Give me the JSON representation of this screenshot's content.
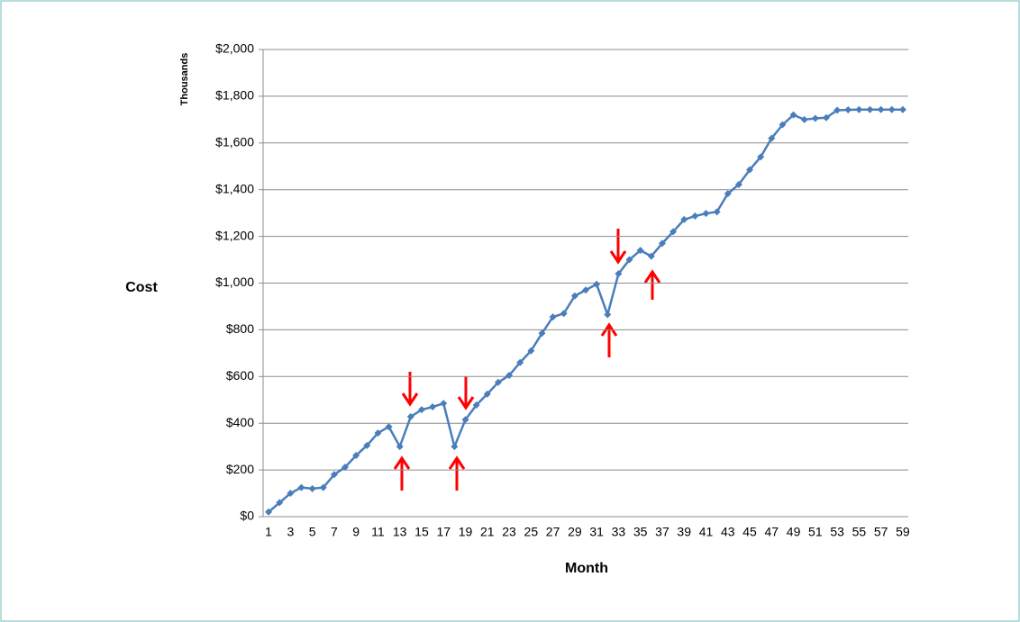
{
  "chart_data": {
    "type": "line",
    "ylabel": "Cost",
    "yunit": "Thousands",
    "xlabel": "Month",
    "categories": [
      1,
      null,
      3,
      null,
      5,
      null,
      7,
      null,
      9,
      null,
      11,
      null,
      13,
      null,
      15,
      null,
      17,
      null,
      19,
      null,
      21,
      null,
      23,
      null,
      25,
      null,
      27,
      null,
      29,
      null,
      31,
      null,
      33,
      null,
      35,
      null,
      37,
      null,
      39,
      null,
      41,
      null,
      43,
      null,
      45,
      null,
      47,
      null,
      49,
      null,
      51,
      null,
      53,
      null,
      55,
      null,
      57,
      null,
      59
    ],
    "series": [
      {
        "color": "#4a7ebb",
        "values": [
          20,
          60,
          100,
          125,
          120,
          125,
          180,
          212,
          262,
          305,
          358,
          385,
          300,
          428,
          458,
          470,
          485,
          300,
          415,
          478,
          525,
          575,
          605,
          660,
          710,
          785,
          855,
          870,
          945,
          970,
          995,
          865,
          1040,
          1100,
          1140,
          1115,
          1170,
          1220,
          1272,
          1287,
          1298,
          1305,
          1383,
          1422,
          1485,
          1540,
          1620,
          1678,
          1720,
          1700,
          1705,
          1708,
          1740,
          1742,
          1743,
          1743,
          1743,
          1743,
          1743
        ]
      }
    ],
    "ylim": [
      0,
      2000
    ],
    "yticks": [
      {
        "value": 0,
        "label": "$0"
      },
      {
        "value": 200,
        "label": "$200"
      },
      {
        "value": 400,
        "label": "$400"
      },
      {
        "value": 600,
        "label": "$600"
      },
      {
        "value": 800,
        "label": "$800"
      },
      {
        "value": 1000,
        "label": "$1,000"
      },
      {
        "value": 1200,
        "label": "$1,200"
      },
      {
        "value": 1400,
        "label": "$1,400"
      },
      {
        "value": 1600,
        "label": "$1,600"
      },
      {
        "value": 1800,
        "label": "$1,800"
      },
      {
        "value": 2000,
        "label": "$2,000"
      }
    ],
    "grid": true
  }
}
